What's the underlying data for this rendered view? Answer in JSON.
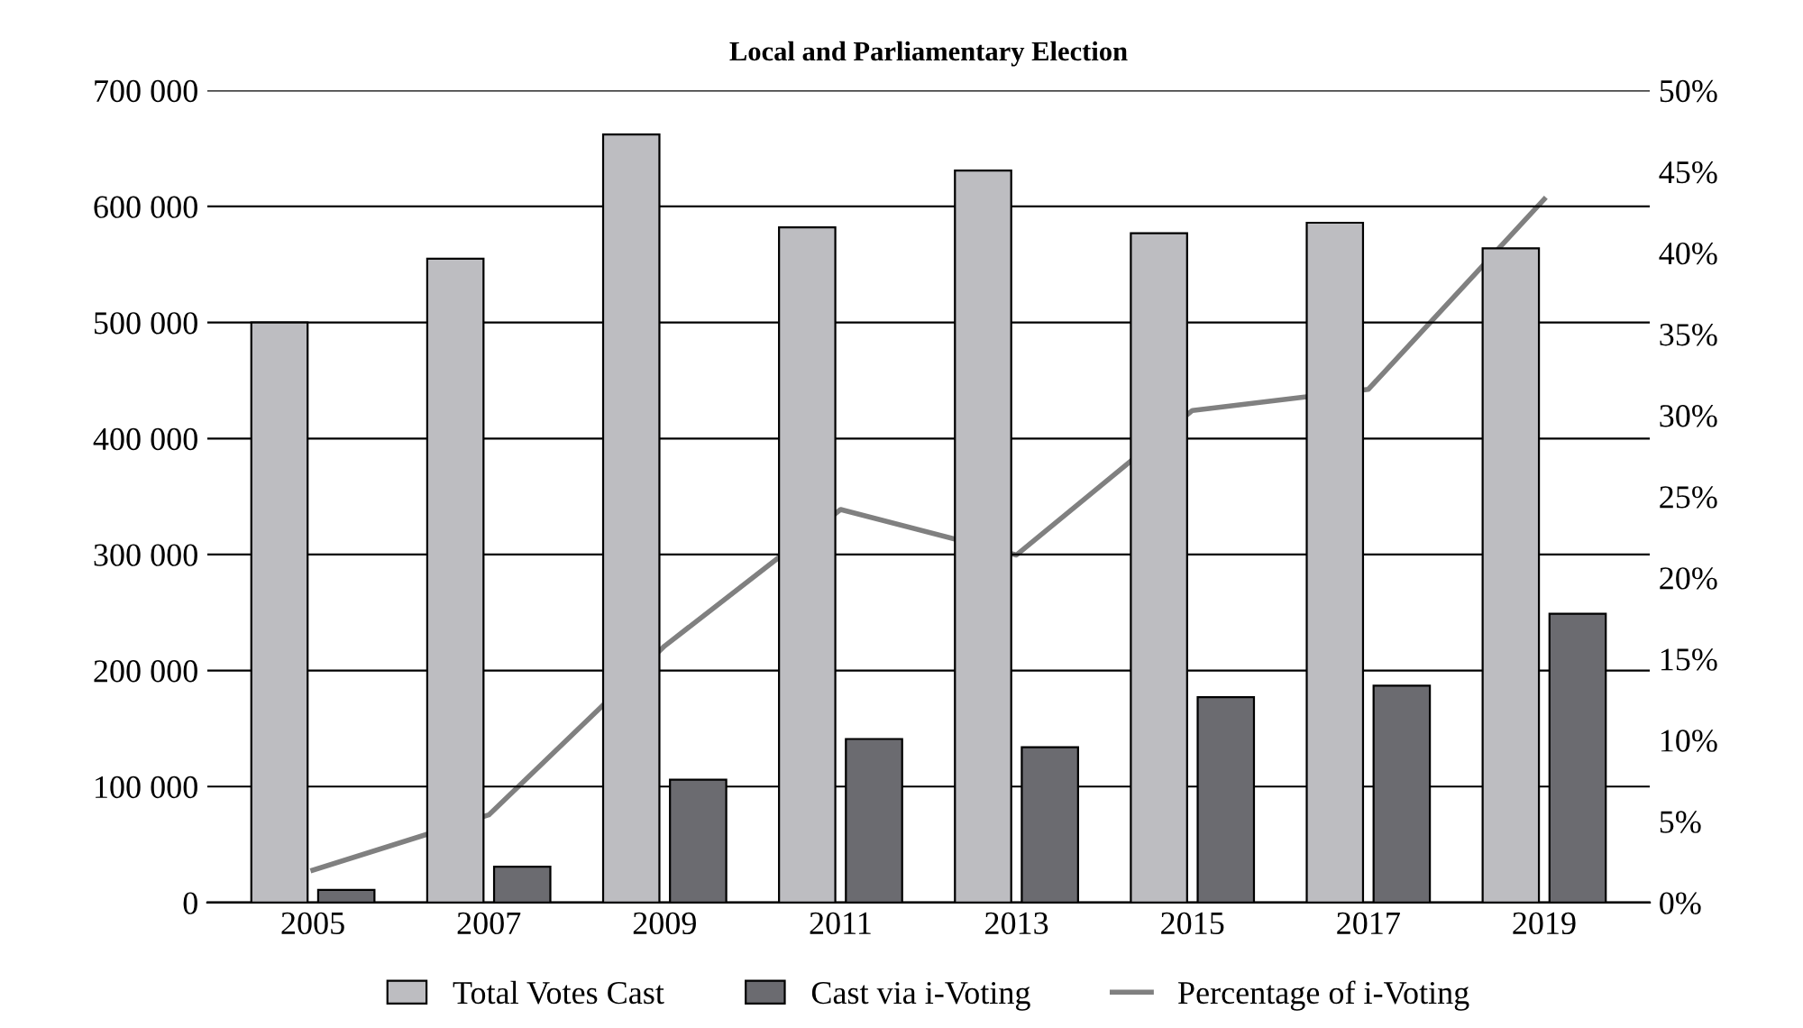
{
  "chart_data": {
    "type": "bar",
    "title": "Local and Parliamentary Election",
    "categories": [
      "2005",
      "2007",
      "2009",
      "2011",
      "2013",
      "2015",
      "2017",
      "2019"
    ],
    "series": [
      {
        "name": "Total Votes Cast",
        "color": "#bdbdc1",
        "values": [
          500000,
          555000,
          662000,
          582000,
          631000,
          577000,
          586000,
          564000
        ]
      },
      {
        "name": "Cast via i-Voting",
        "color": "#6b6b70",
        "values": [
          11000,
          31000,
          106000,
          141000,
          134000,
          177000,
          187000,
          249000
        ]
      },
      {
        "name": "Percentage of i-Voting",
        "type": "line",
        "axis": "y2",
        "color": "#808080",
        "values": [
          2.0,
          5.4,
          15.8,
          24.2,
          21.4,
          30.3,
          31.6,
          43.3
        ]
      }
    ],
    "ylim": [
      0,
      700000
    ],
    "yticks": [
      0,
      {
        "value": 100000,
        "label": "100 000"
      },
      {
        "value": 200000,
        "label": "200 000"
      },
      {
        "value": 300000,
        "label": "300 000"
      },
      {
        "value": 400000,
        "label": "400 000"
      },
      {
        "value": 500000,
        "label": "500 000"
      },
      {
        "value": 600000,
        "label": "600 000"
      },
      {
        "value": 700000,
        "label": "700 000"
      }
    ],
    "y2lim": [
      0,
      50
    ],
    "y2ticks": [
      {
        "value": 0,
        "label": "0%"
      },
      {
        "value": 5,
        "label": "5%"
      },
      {
        "value": 10,
        "label": "10%"
      },
      {
        "value": 15,
        "label": "15%"
      },
      {
        "value": 20,
        "label": "20%"
      },
      {
        "value": 25,
        "label": "25%"
      },
      {
        "value": 30,
        "label": "30%"
      },
      {
        "value": 35,
        "label": "35%"
      },
      {
        "value": 40,
        "label": "40%"
      },
      {
        "value": 45,
        "label": "45%"
      },
      {
        "value": 50,
        "label": "50%"
      }
    ],
    "grid": "y",
    "legend": "bottom",
    "marker": "none",
    "line_style": "solid"
  }
}
